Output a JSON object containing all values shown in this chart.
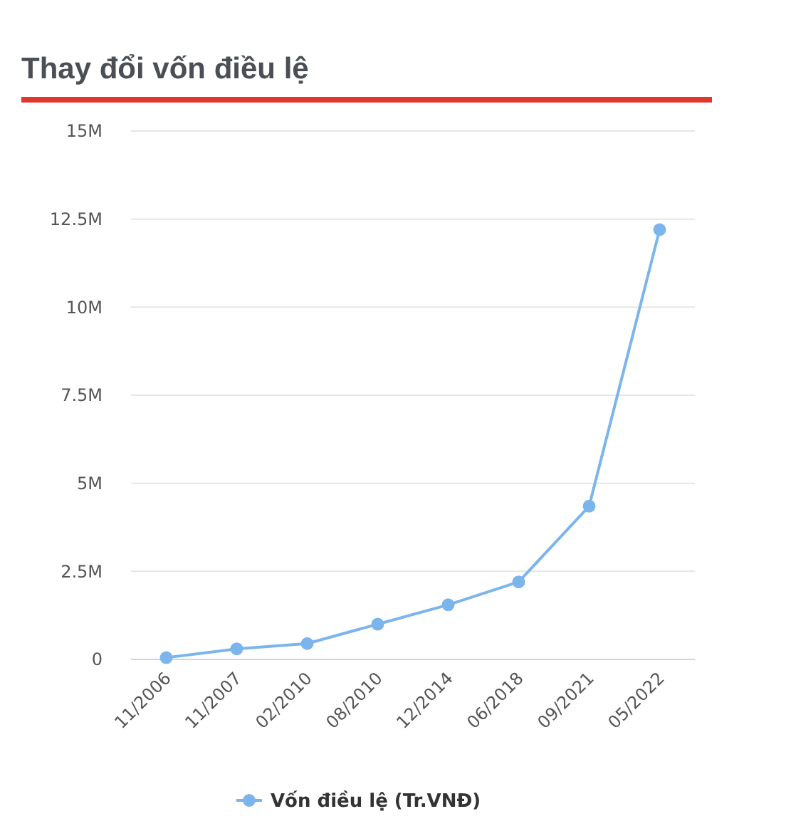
{
  "chart_data": {
    "type": "line",
    "title": "Thay đổi vốn điều lệ",
    "categories": [
      "11/2006",
      "11/2007",
      "02/2010",
      "08/2010",
      "12/2014",
      "06/2018",
      "09/2021",
      "05/2022"
    ],
    "series": [
      {
        "name": "Vốn điều lệ (Tr.VNĐ)",
        "color": "#7cb5ec",
        "values": [
          50000,
          300000,
          450000,
          1000000,
          1550000,
          2200000,
          4350000,
          12200000
        ]
      }
    ],
    "ylim": [
      0,
      15000000
    ],
    "yticks": [
      0,
      {
        "value": 2500000,
        "label": "2.5M"
      },
      {
        "value": 5000000,
        "label": "5M"
      },
      {
        "value": 7500000,
        "label": "7.5M"
      },
      {
        "value": 10000000,
        "label": "10M"
      },
      {
        "value": 12500000,
        "label": "12.5M"
      },
      {
        "value": 15000000,
        "label": "15M"
      }
    ],
    "grid": "y",
    "legend": "bottom",
    "marker": "circle",
    "line_style": "solid"
  }
}
